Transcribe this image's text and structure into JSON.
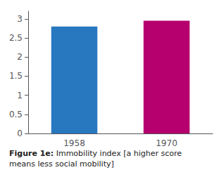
{
  "chart_data": {
    "type": "bar",
    "categories": [
      "1958",
      "1970"
    ],
    "values": [
      2.8,
      2.95
    ],
    "colors": [
      "#2878c0",
      "#b5006e"
    ],
    "ylim": [
      0,
      3.2
    ],
    "yticks": [
      0,
      0.5,
      1,
      1.5,
      2,
      2.5,
      3
    ],
    "grid": false,
    "annotations": [
      "Figure 1e:",
      "Immobility index [a higher score\nmeans less social mobility]"
    ]
  }
}
